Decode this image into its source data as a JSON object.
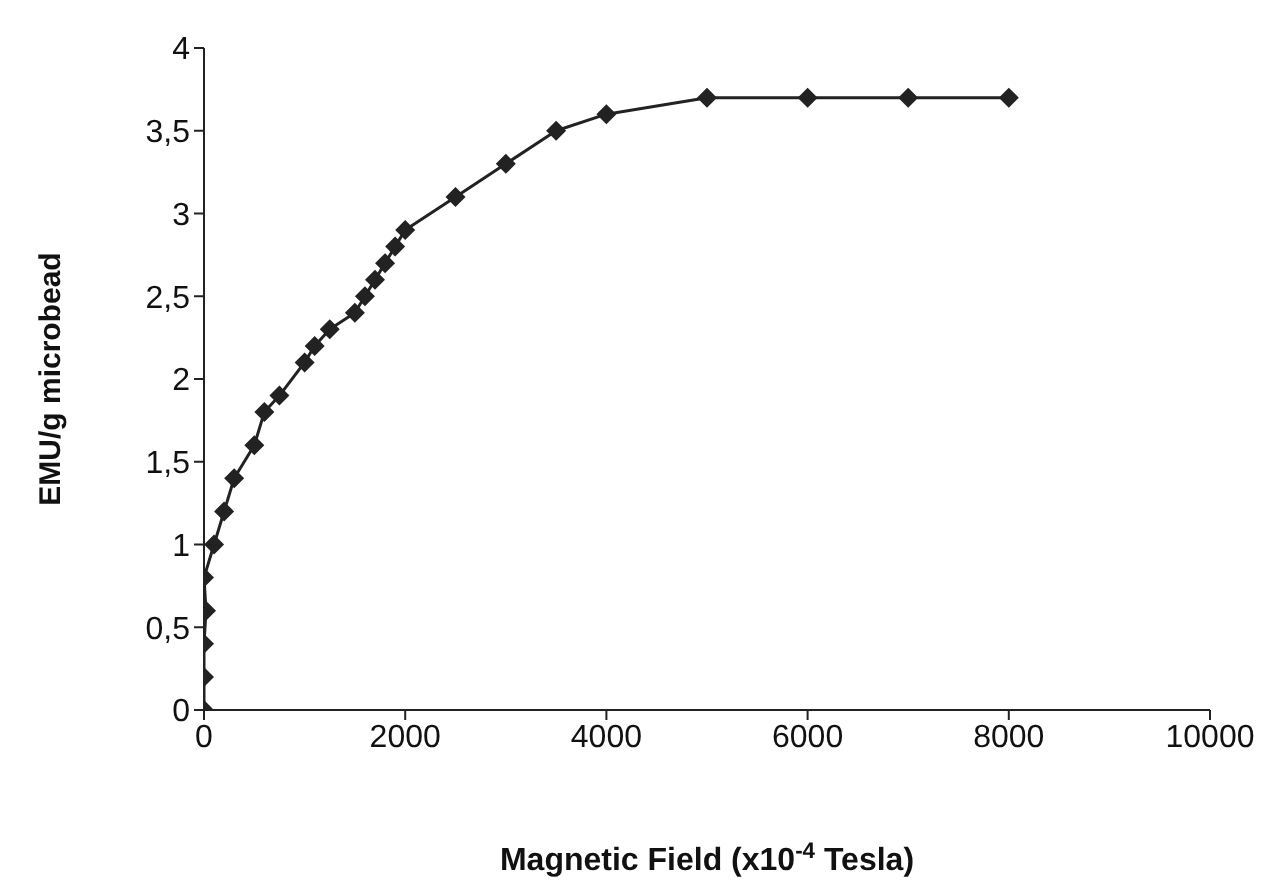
{
  "chart_data": {
    "type": "line",
    "xlabel": "Magnetic Field (x10$^{-4}$ Tesla)",
    "ylabel": "EMU/g microbead",
    "x": [
      0,
      0,
      0,
      20,
      0,
      100,
      200,
      300,
      500,
      600,
      750,
      1000,
      1100,
      1250,
      1500,
      1600,
      1700,
      1800,
      1900,
      2000,
      2500,
      3000,
      3500,
      4000,
      5000,
      6000,
      7000,
      8000
    ],
    "series": [
      {
        "color": "#222222",
        "values": [
          0,
          0.2,
          0.4,
          0.6,
          0.8,
          1.0,
          1.2,
          1.4,
          1.6,
          1.8,
          1.9,
          2.1,
          2.2,
          2.3,
          2.4,
          2.5,
          2.6,
          2.7,
          2.8,
          2.9,
          3.1,
          3.3,
          3.5,
          3.6,
          3.7,
          3.7,
          3.7,
          3.7
        ]
      }
    ],
    "xlim": [
      0,
      10000
    ],
    "xticks": [
      0,
      2000,
      4000,
      6000,
      8000,
      10000
    ],
    "ylim": [
      0,
      4
    ],
    "yticks": [
      0,
      {
        "value": 0.5,
        "label": "0,5"
      },
      1,
      {
        "value": 1.5,
        "label": "1,5"
      },
      2,
      {
        "value": 2.5,
        "label": "2,5"
      },
      3,
      {
        "value": 3.5,
        "label": "3,5"
      },
      4
    ],
    "marker": "diamond",
    "line_style": "solid",
    "grid": false,
    "legend": false
  }
}
